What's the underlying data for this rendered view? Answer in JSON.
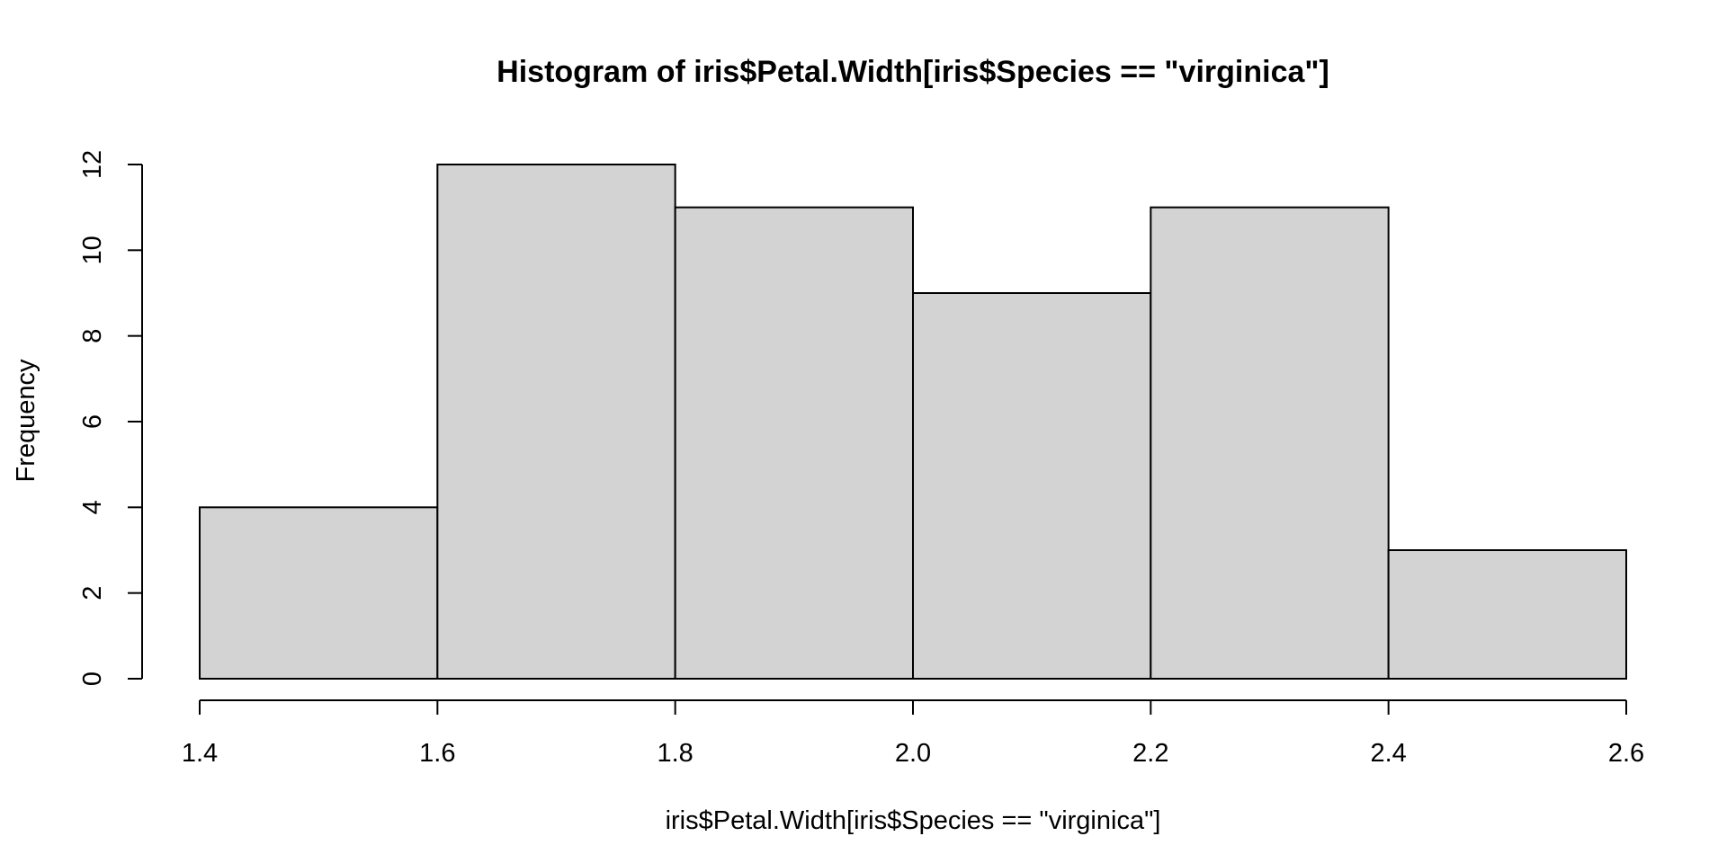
{
  "chart_data": {
    "type": "bar",
    "subtype": "histogram",
    "title": "Histogram of iris$Petal.Width[iris$Species == \"virginica\"]",
    "xlabel": "iris$Petal.Width[iris$Species == \"virginica\"]",
    "ylabel": "Frequency",
    "bins": [
      {
        "start": 1.4,
        "end": 1.6,
        "count": 4
      },
      {
        "start": 1.6,
        "end": 1.8,
        "count": 12
      },
      {
        "start": 1.8,
        "end": 2.0,
        "count": 11
      },
      {
        "start": 2.0,
        "end": 2.2,
        "count": 9
      },
      {
        "start": 2.2,
        "end": 2.4,
        "count": 11
      },
      {
        "start": 2.4,
        "end": 2.6,
        "count": 3
      }
    ],
    "xlim": [
      1.4,
      2.6
    ],
    "ylim": [
      0,
      12
    ],
    "x_ticks": [
      "1.4",
      "1.6",
      "1.8",
      "2.0",
      "2.2",
      "2.4",
      "2.6"
    ],
    "y_ticks": [
      "0",
      "2",
      "4",
      "6",
      "8",
      "10",
      "12"
    ],
    "grid": false,
    "legend": "none",
    "colors": {
      "bar_fill": "#d3d3d3",
      "bar_stroke": "#000000",
      "background": "#ffffff"
    }
  }
}
